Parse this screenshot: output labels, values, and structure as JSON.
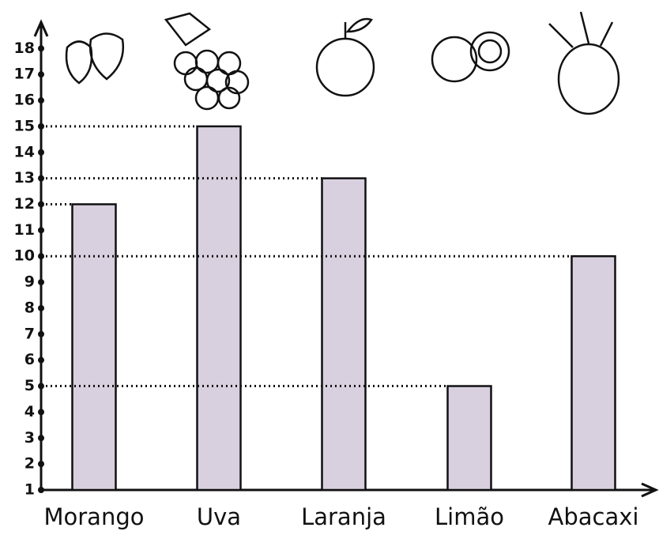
{
  "chart_data": {
    "type": "bar",
    "categories": [
      "Morango",
      "Uva",
      "Laranja",
      "Limão",
      "Abacaxi"
    ],
    "values": [
      12,
      15,
      13,
      5,
      10
    ],
    "color": "#d9d0df",
    "ylim": [
      1,
      18.8
    ],
    "yticks": [
      1,
      2,
      3,
      4,
      5,
      6,
      7,
      8,
      9,
      10,
      11,
      12,
      13,
      14,
      15,
      16,
      17,
      18
    ],
    "grid": false
  }
}
